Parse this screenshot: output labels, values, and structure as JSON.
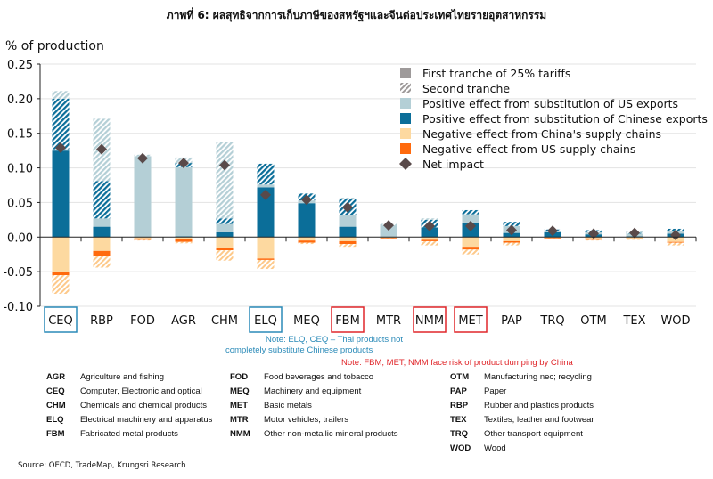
{
  "title": "ภาพที่ 6: ผลสุทธิจากการเก็บภาษีของสหรัฐฯและจีนต่อประเทศไทยรายอุตสาหกรรม",
  "colors": {
    "chn": "#0b6e99",
    "us": "#b4cfd6",
    "cnsc": "#fdd9a0",
    "ussc": "#ff6a0d",
    "net": "#594a4a",
    "tranche": "#9e9a9a",
    "blueBox": "#2a8ab8",
    "redBox": "#e0262a"
  },
  "chart_data": {
    "type": "bar",
    "title": "ภาพที่ 6: ผลสุทธิจากการเก็บภาษีของสหรัฐฯและจีนต่อประเทศไทยรายอุตสาหกรรม",
    "ylabel": "% of production",
    "ylim": [
      -0.1,
      0.25
    ],
    "yticks": [
      "0.25",
      "0.20",
      "0.15",
      "0.10",
      "0.05",
      "0.00",
      "-0.05",
      "-0.10"
    ],
    "grid": true,
    "legend_position": "top-right",
    "legend": [
      "First tranche of 25% tariffs",
      "Second tranche",
      "Positive effect from substitution of US exports",
      "Positive effect from substitution of Chinese exports",
      "Negative effect from China's supply chains",
      "Negative effect from US supply chains",
      "Net impact"
    ],
    "categories": [
      "CEQ",
      "RBP",
      "FOD",
      "AGR",
      "CHM",
      "ELQ",
      "MEQ",
      "FBM",
      "MTR",
      "NMM",
      "MET",
      "PAP",
      "TRQ",
      "OTM",
      "TEX",
      "WOD"
    ],
    "highlight_blue": [
      "CEQ",
      "ELQ"
    ],
    "highlight_red": [
      "FBM",
      "NMM",
      "MET"
    ],
    "series": [
      {
        "name": "Chinese substitution (1st tranche)",
        "values": [
          0.125,
          0.015,
          0,
          0.001,
          0.007,
          0.072,
          0.049,
          0.015,
          0,
          0.014,
          0.021,
          0.006,
          0.007,
          0.004,
          0.001,
          0.005
        ]
      },
      {
        "name": "US substitution (1st tranche)",
        "values": [
          0.002,
          0.012,
          0.117,
          0.1,
          0.012,
          0.004,
          0.004,
          0.017,
          0.017,
          0.0,
          0.012,
          0.01,
          0.001,
          0.003,
          0.004,
          0.004
        ]
      },
      {
        "name": "Chinese substitution (2nd tranche)",
        "values": [
          0.073,
          0.054,
          0,
          0.006,
          0.008,
          0.03,
          0.01,
          0.023,
          0,
          0.011,
          0.006,
          0.006,
          0.003,
          0.003,
          0.001,
          0.003
        ]
      },
      {
        "name": "US substitution (2nd tranche)",
        "values": [
          0.011,
          0.09,
          0.002,
          0.008,
          0.111,
          0,
          0,
          0.002,
          0.002,
          0.002,
          0,
          0,
          0,
          0,
          0.002,
          0
        ]
      },
      {
        "name": "China supply chains (1st tranche)",
        "values": [
          -0.05,
          -0.02,
          -0.002,
          -0.003,
          -0.016,
          -0.031,
          -0.005,
          -0.006,
          -0.001,
          -0.004,
          -0.014,
          -0.006,
          -0.001,
          -0.002,
          -0.002,
          -0.007
        ]
      },
      {
        "name": "US supply chains (1st tranche)",
        "values": [
          -0.005,
          -0.008,
          -0.002,
          -0.004,
          -0.003,
          -0.002,
          -0.003,
          -0.004,
          -0.001,
          -0.002,
          -0.004,
          -0.002,
          -0.001,
          -0.002,
          -0.001,
          -0.001
        ]
      },
      {
        "name": "Supply chains (2nd tranche)",
        "values": [
          -0.027,
          -0.016,
          -0.001,
          -0.002,
          -0.015,
          -0.013,
          -0.002,
          -0.004,
          -0.001,
          -0.006,
          -0.007,
          -0.004,
          -0.001,
          -0.001,
          -0.001,
          -0.004
        ]
      },
      {
        "name": "Net impact",
        "values": [
          0.129,
          0.127,
          0.114,
          0.107,
          0.104,
          0.061,
          0.054,
          0.043,
          0.017,
          0.016,
          0.016,
          0.01,
          0.009,
          0.005,
          0.006,
          0.003
        ]
      }
    ]
  },
  "notes": {
    "blue": [
      "Note: ELQ, CEQ – Thai products not",
      "completely substitute Chinese products"
    ],
    "red": "Note: FBM, MET, NMM face risk of product dumping by China"
  },
  "glossary": [
    [
      [
        "AGR",
        "Agriculture and fishing"
      ],
      [
        "CEQ",
        "Computer, Electronic and optical"
      ],
      [
        "CHM",
        "Chemicals and chemical products"
      ],
      [
        "ELQ",
        "Electrical machinery and apparatus"
      ],
      [
        "FBM",
        "Fabricated metal products"
      ]
    ],
    [
      [
        "FOD",
        "Food beverages and tobacco"
      ],
      [
        "MEQ",
        "Machinery and equipment"
      ],
      [
        "MET",
        "Basic metals"
      ],
      [
        "MTR",
        "Motor vehicles, trailers"
      ],
      [
        "NMM",
        "Other non-metallic mineral products"
      ]
    ],
    [
      [
        "OTM",
        "Manufacturing nec; recycling"
      ],
      [
        "PAP",
        "Paper"
      ],
      [
        "RBP",
        "Rubber and plastics products"
      ],
      [
        "TEX",
        "Textiles, leather and footwear"
      ],
      [
        "TRQ",
        "Other transport equipment"
      ],
      [
        "WOD",
        "Wood"
      ]
    ]
  ],
  "source": "Source: OECD, TradeMap, Krungsri Research"
}
